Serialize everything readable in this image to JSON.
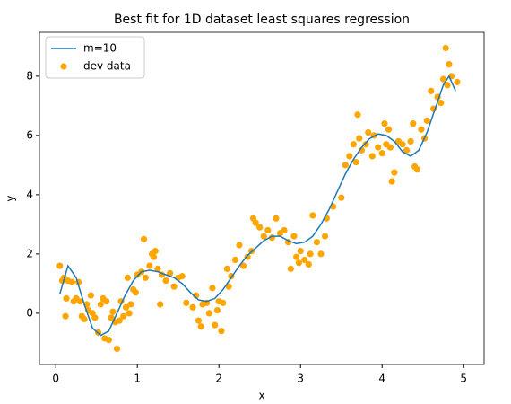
{
  "chart_data": {
    "type": "line",
    "title": "Best fit for 1D dataset least squares regression",
    "xlabel": "x",
    "ylabel": "y",
    "xlim": [
      -0.2,
      5.25
    ],
    "ylim": [
      -1.73,
      9.48
    ],
    "xticks": [
      0,
      1,
      2,
      3,
      4,
      5
    ],
    "yticks": [
      0,
      2,
      4,
      6,
      8
    ],
    "legend": "upper left",
    "series": [
      {
        "name": "m=10",
        "type": "line",
        "color": "#1f77b4",
        "x": [
          0.05,
          0.15,
          0.25,
          0.35,
          0.45,
          0.55,
          0.65,
          0.75,
          0.85,
          0.95,
          1.05,
          1.15,
          1.25,
          1.35,
          1.45,
          1.55,
          1.65,
          1.75,
          1.85,
          1.95,
          2.05,
          2.15,
          2.25,
          2.35,
          2.45,
          2.55,
          2.65,
          2.75,
          2.85,
          2.95,
          3.05,
          3.15,
          3.25,
          3.35,
          3.45,
          3.55,
          3.65,
          3.75,
          3.85,
          3.95,
          4.05,
          4.15,
          4.25,
          4.35,
          4.45,
          4.55,
          4.65,
          4.75,
          4.82,
          4.9
        ],
        "y": [
          0.65,
          1.6,
          1.2,
          0.3,
          -0.5,
          -0.75,
          -0.6,
          0.0,
          0.6,
          1.1,
          1.4,
          1.45,
          1.4,
          1.3,
          1.2,
          1.0,
          0.7,
          0.45,
          0.4,
          0.5,
          0.8,
          1.2,
          1.6,
          1.95,
          2.2,
          2.45,
          2.6,
          2.6,
          2.45,
          2.35,
          2.4,
          2.6,
          3.0,
          3.5,
          4.1,
          4.7,
          5.2,
          5.6,
          5.9,
          6.05,
          6.0,
          5.8,
          5.45,
          5.3,
          5.5,
          6.1,
          6.9,
          7.7,
          8.0,
          7.5
        ]
      },
      {
        "name": "dev data",
        "type": "scatter",
        "color": "#ffa500",
        "x": [
          0.05,
          0.08,
          0.1,
          0.12,
          0.13,
          0.15,
          0.2,
          0.22,
          0.25,
          0.28,
          0.3,
          0.32,
          0.35,
          0.38,
          0.4,
          0.43,
          0.45,
          0.48,
          0.52,
          0.55,
          0.58,
          0.6,
          0.62,
          0.65,
          0.68,
          0.7,
          0.73,
          0.75,
          0.78,
          0.8,
          0.83,
          0.86,
          0.88,
          0.9,
          0.92,
          0.95,
          0.98,
          1.0,
          1.05,
          1.08,
          1.1,
          1.15,
          1.18,
          1.2,
          1.22,
          1.25,
          1.28,
          1.3,
          1.35,
          1.4,
          1.45,
          1.5,
          1.55,
          1.6,
          1.68,
          1.72,
          1.75,
          1.78,
          1.8,
          1.85,
          1.88,
          1.92,
          1.95,
          1.98,
          2.0,
          2.03,
          2.05,
          2.1,
          2.12,
          2.15,
          2.2,
          2.25,
          2.3,
          2.35,
          2.4,
          2.42,
          2.45,
          2.5,
          2.55,
          2.6,
          2.65,
          2.7,
          2.75,
          2.8,
          2.85,
          2.88,
          2.92,
          2.95,
          2.98,
          3.0,
          3.05,
          3.1,
          3.12,
          3.15,
          3.2,
          3.25,
          3.3,
          3.32,
          3.4,
          3.5,
          3.55,
          3.6,
          3.65,
          3.68,
          3.7,
          3.72,
          3.75,
          3.8,
          3.83,
          3.88,
          3.9,
          3.95,
          4.0,
          4.03,
          4.05,
          4.08,
          4.1,
          4.12,
          4.15,
          4.2,
          4.25,
          4.3,
          4.35,
          4.38,
          4.4,
          4.43,
          4.48,
          4.52,
          4.55,
          4.6,
          4.63,
          4.68,
          4.72,
          4.75,
          4.78,
          4.8,
          4.82,
          4.85,
          4.92
        ],
        "y": [
          1.6,
          1.1,
          1.2,
          -0.1,
          0.5,
          1.1,
          1.05,
          0.4,
          0.5,
          1.05,
          0.4,
          -0.1,
          -0.2,
          0.3,
          0.1,
          0.6,
          0.0,
          -0.15,
          -0.65,
          0.3,
          0.5,
          -0.85,
          0.4,
          -0.9,
          -0.15,
          0.05,
          -0.3,
          -1.2,
          -0.25,
          0.4,
          -0.1,
          0.2,
          1.2,
          0.0,
          0.3,
          0.8,
          0.7,
          1.3,
          1.4,
          2.5,
          1.2,
          1.6,
          2.0,
          1.9,
          2.1,
          1.5,
          0.3,
          1.3,
          1.1,
          1.35,
          0.9,
          1.2,
          1.25,
          0.35,
          0.2,
          0.6,
          -0.25,
          -0.45,
          0.3,
          0.35,
          0.0,
          0.85,
          -0.4,
          0.1,
          0.4,
          -0.6,
          0.35,
          1.5,
          0.9,
          1.25,
          1.8,
          2.3,
          1.6,
          1.9,
          2.1,
          3.2,
          3.05,
          2.9,
          2.6,
          2.8,
          2.55,
          3.2,
          2.7,
          2.8,
          2.4,
          1.5,
          2.6,
          1.9,
          1.7,
          2.1,
          1.8,
          1.65,
          2.0,
          3.3,
          2.4,
          2.0,
          2.6,
          3.2,
          3.6,
          3.9,
          5.0,
          5.3,
          5.7,
          5.1,
          6.7,
          5.9,
          5.5,
          5.7,
          6.1,
          5.3,
          6.0,
          5.6,
          5.4,
          6.4,
          5.7,
          6.2,
          5.6,
          4.45,
          4.75,
          5.8,
          5.7,
          5.5,
          5.8,
          6.4,
          4.95,
          4.85,
          6.2,
          5.9,
          6.5,
          7.5,
          6.9,
          7.3,
          7.1,
          7.9,
          8.95,
          7.7,
          8.4,
          8.0,
          7.8
        ]
      }
    ]
  }
}
